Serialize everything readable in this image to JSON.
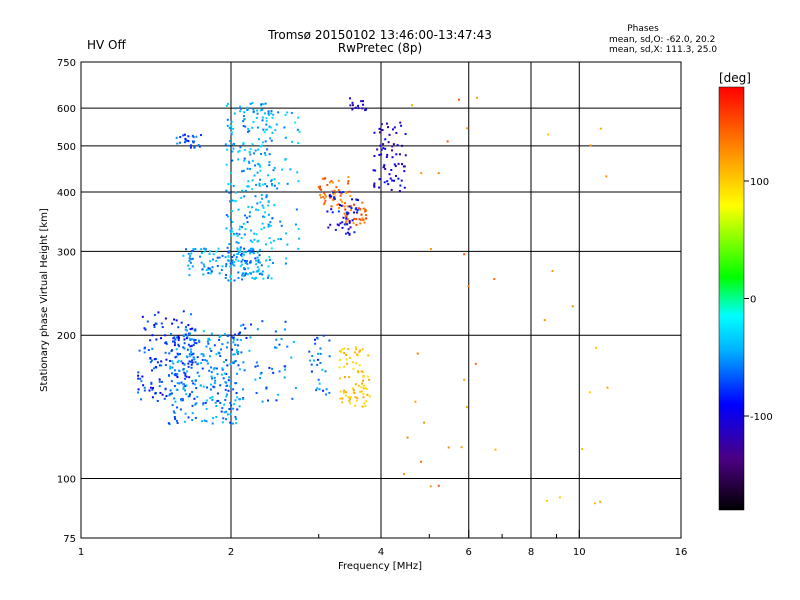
{
  "header": {
    "hv_status": "HV Off",
    "title_line1": "Tromsø 20150102 13:46:00-13:47:43",
    "title_line2": "RwPretec (8p)",
    "phases_title": "Phases",
    "phases_o": "mean, sd,O: -62.0, 20.2",
    "phases_x": "mean, sd,X: 111.3, 25.0"
  },
  "colors": {
    "hv_status": "#cc0000",
    "scale": [
      "#000000",
      "#4b0082",
      "#0000ff",
      "#00b4ff",
      "#00ffff",
      "#00ff00",
      "#ffff00",
      "#ff8c00",
      "#ff0000"
    ]
  },
  "colorbar": {
    "unit": "[deg]",
    "range": [
      -180,
      180
    ],
    "ticks": [
      {
        "value": 100,
        "label": "100"
      },
      {
        "value": 0,
        "label": "0"
      },
      {
        "value": -100,
        "label": "-100"
      }
    ]
  },
  "chart_data": {
    "type": "scatter",
    "title": "Tromsø 20150102 13:46:00-13:47:43",
    "subtitle": "RwPretec (8p)",
    "xlabel": "Frequency [MHz]",
    "ylabel": "Stationary phase Virtual Height [km]",
    "xscale": "log",
    "yscale": "log",
    "xlim": [
      1,
      16
    ],
    "ylim": [
      75,
      750
    ],
    "x_ticks": [
      {
        "value": 1,
        "label": "1"
      },
      {
        "value": 2,
        "label": "2"
      },
      {
        "value": 4,
        "label": "4"
      },
      {
        "value": 6,
        "label": "6"
      },
      {
        "value": 8,
        "label": "8"
      },
      {
        "value": 10,
        "label": "10"
      },
      {
        "value": 16,
        "label": "16"
      }
    ],
    "x_minor": [
      3,
      5,
      7,
      9
    ],
    "y_ticks": [
      {
        "value": 75,
        "label": "75"
      },
      {
        "value": 100,
        "label": "100"
      },
      {
        "value": 200,
        "label": "200"
      },
      {
        "value": 300,
        "label": "300"
      },
      {
        "value": 400,
        "label": "400"
      },
      {
        "value": 500,
        "label": "500"
      },
      {
        "value": 600,
        "label": "600"
      },
      {
        "value": 750,
        "label": "750"
      }
    ],
    "grid": true,
    "clusters": [
      {
        "f": [
          1.3,
          1.7
        ],
        "h": [
          145,
          225
        ],
        "phase": -90,
        "n": 150
      },
      {
        "f": [
          1.5,
          2.1
        ],
        "h": [
          130,
          205
        ],
        "phase": -70,
        "n": 260
      },
      {
        "f": [
          2.0,
          2.7
        ],
        "h": [
          145,
          215
        ],
        "phase": -75,
        "n": 60
      },
      {
        "f": [
          1.95,
          2.45
        ],
        "h": [
          260,
          620
        ],
        "phase": -60,
        "n": 280
      },
      {
        "f": [
          1.6,
          2.3
        ],
        "h": [
          265,
          305
        ],
        "phase": -65,
        "n": 120
      },
      {
        "f": [
          1.55,
          1.75
        ],
        "h": [
          495,
          530
        ],
        "phase": -85,
        "n": 25
      },
      {
        "f": [
          2.3,
          2.75
        ],
        "h": [
          280,
          600
        ],
        "phase": -55,
        "n": 50
      },
      {
        "f": [
          2.85,
          3.2
        ],
        "h": [
          150,
          200
        ],
        "phase": -75,
        "n": 30
      },
      {
        "f": [
          3.3,
          3.8
        ],
        "h": [
          140,
          190
        ],
        "phase": 110,
        "n": 80
      },
      {
        "f": [
          3.0,
          3.5
        ],
        "h": [
          370,
          430
        ],
        "phase": 145,
        "n": 50
      },
      {
        "f": [
          3.35,
          3.75
        ],
        "h": [
          340,
          380
        ],
        "phase": 150,
        "n": 40
      },
      {
        "f": [
          3.1,
          3.6
        ],
        "h": [
          325,
          400
        ],
        "phase": -105,
        "n": 50
      },
      {
        "f": [
          3.85,
          4.5
        ],
        "h": [
          400,
          560
        ],
        "phase": -115,
        "n": 70
      },
      {
        "f": [
          3.45,
          3.75
        ],
        "h": [
          590,
          635
        ],
        "phase": -110,
        "n": 15
      },
      {
        "f": [
          4.4,
          6.8
        ],
        "h": [
          95,
          640
        ],
        "phase": 140,
        "n": 25
      },
      {
        "f": [
          8.5,
          11.5
        ],
        "h": [
          85,
          600
        ],
        "phase": 120,
        "n": 15
      }
    ]
  }
}
